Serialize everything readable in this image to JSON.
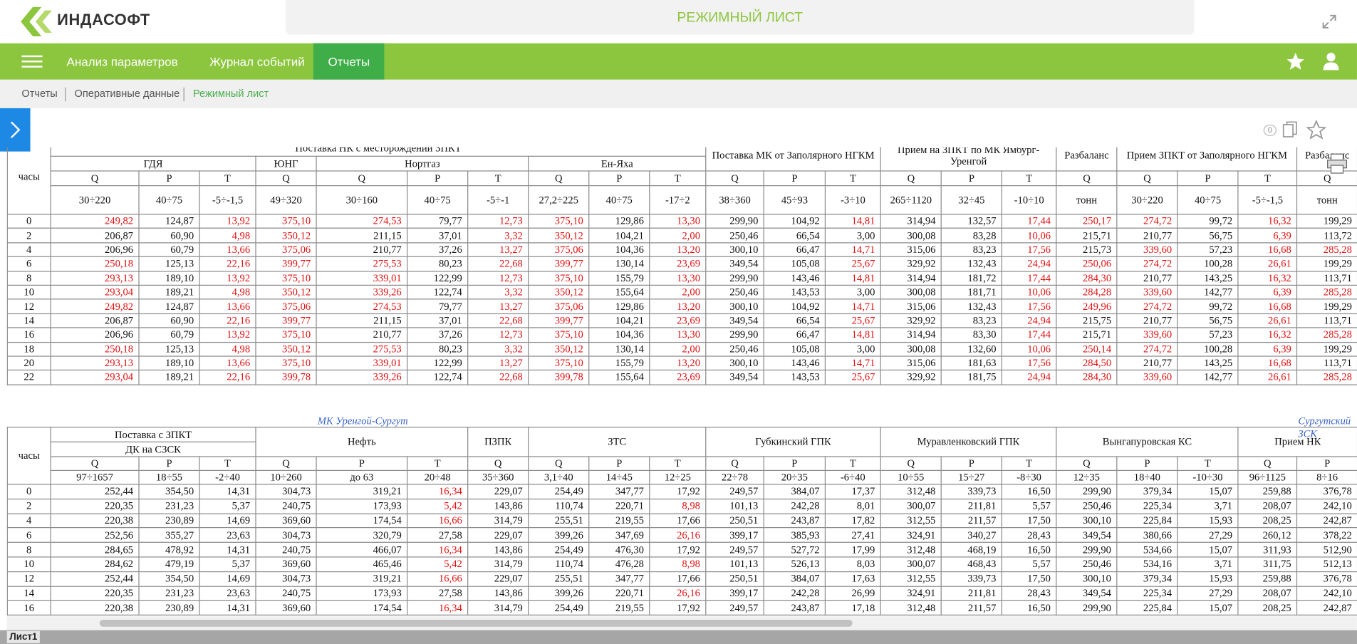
{
  "header": {
    "logo": "ИНДАСОФТ",
    "title": "РЕЖИМНЫЙ ЛИСТ"
  },
  "nav": {
    "items": [
      "Анализ параметров",
      "Журнал событий",
      "Отчеты"
    ],
    "active": 2
  },
  "breadcrumbs": [
    "Отчеты",
    "Оперативные данные",
    "Режимный лист"
  ],
  "toolbar": {
    "badge": "0"
  },
  "sheet_tab": "Лист1",
  "tables": [
    {
      "hour_label": "часы",
      "captions": [],
      "groups": [
        "Поставка НК с месторождений ЗПКТ",
        "Поставка МК от Заполярного НГКМ",
        "Прием на ЗПКТ по МК Ямбург-Уренгой",
        "Разбаланс",
        "Прием ЗПКТ от Заполярного НГКМ",
        "Разбаланс"
      ],
      "subgroups": [
        "ГДЯ",
        "ЮНГ",
        "Нортгаз",
        "Ен-Яха"
      ],
      "params": [
        "Q",
        "P",
        "T",
        "Q",
        "Q",
        "P",
        "T",
        "Q",
        "P",
        "T",
        "Q",
        "P",
        "T",
        "Q",
        "P",
        "T",
        "Q",
        "Q",
        "P",
        "T",
        "Q"
      ],
      "ranges": [
        "30÷220",
        "40÷75",
        "-5÷-1,5",
        "49÷320",
        "30÷160",
        "40÷75",
        "-5÷-1",
        "27,2÷225",
        "40÷75",
        "-17÷2",
        "38÷360",
        "45÷93",
        "-3÷10",
        "265÷1120",
        "32÷45",
        "-10÷10",
        "тонн",
        "30÷220",
        "40÷75",
        "-5÷-1,5",
        "тонн"
      ],
      "rows": [
        {
          "hour": 0,
          "values": [
            "249,82",
            "124,87",
            "13,92",
            "375,10",
            "274,53",
            "79,77",
            "12,73",
            "375,10",
            "129,86",
            "13,30",
            "299,90",
            "104,92",
            "14,81",
            "314,94",
            "132,57",
            "17,44",
            "250,17",
            "274,72",
            "99,72",
            "16,32",
            "199,29"
          ],
          "alarms": [
            0,
            2,
            3,
            4,
            6,
            7,
            9,
            12,
            15,
            16,
            17,
            19
          ]
        },
        {
          "hour": 2,
          "values": [
            "206,87",
            "60,90",
            "4,98",
            "350,12",
            "211,15",
            "37,01",
            "3,32",
            "350,12",
            "104,21",
            "2,00",
            "250,46",
            "66,54",
            "3,00",
            "300,08",
            "83,28",
            "10,06",
            "215,71",
            "210,77",
            "56,75",
            "6,39",
            "113,72"
          ],
          "alarms": [
            2,
            3,
            6,
            7,
            9,
            15,
            19
          ]
        },
        {
          "hour": 4,
          "values": [
            "206,96",
            "60,79",
            "13,66",
            "375,06",
            "210,77",
            "37,26",
            "13,27",
            "375,06",
            "104,36",
            "13,20",
            "300,10",
            "66,47",
            "14,71",
            "315,06",
            "83,23",
            "17,56",
            "215,73",
            "339,60",
            "57,23",
            "16,68",
            "285,28"
          ],
          "alarms": [
            2,
            3,
            6,
            7,
            9,
            12,
            15,
            17,
            19,
            20
          ]
        },
        {
          "hour": 6,
          "values": [
            "250,18",
            "125,13",
            "22,16",
            "399,77",
            "275,53",
            "80,23",
            "22,68",
            "399,77",
            "130,14",
            "23,69",
            "349,54",
            "105,08",
            "25,67",
            "329,92",
            "132,43",
            "24,94",
            "250,06",
            "274,72",
            "100,28",
            "26,61",
            "199,29"
          ],
          "alarms": [
            0,
            2,
            3,
            4,
            6,
            7,
            9,
            12,
            15,
            16,
            17,
            19
          ]
        },
        {
          "hour": 8,
          "values": [
            "293,13",
            "189,10",
            "13,92",
            "375,10",
            "339,01",
            "122,99",
            "12,73",
            "375,10",
            "155,79",
            "13,30",
            "299,90",
            "143,46",
            "14,81",
            "314,94",
            "181,72",
            "17,44",
            "284,30",
            "210,77",
            "143,25",
            "16,32",
            "113,71"
          ],
          "alarms": [
            0,
            2,
            3,
            4,
            6,
            7,
            9,
            12,
            15,
            16,
            19
          ]
        },
        {
          "hour": 10,
          "values": [
            "293,04",
            "189,21",
            "4,98",
            "350,12",
            "339,26",
            "122,74",
            "3,32",
            "350,12",
            "155,64",
            "2,00",
            "250,46",
            "143,53",
            "3,00",
            "300,08",
            "181,71",
            "10,06",
            "284,28",
            "339,60",
            "142,77",
            "6,39",
            "285,28"
          ],
          "alarms": [
            0,
            2,
            3,
            4,
            6,
            7,
            9,
            15,
            16,
            17,
            19,
            20
          ]
        },
        {
          "hour": 12,
          "values": [
            "249,82",
            "124,87",
            "13,66",
            "375,06",
            "274,53",
            "79,77",
            "13,27",
            "375,06",
            "129,86",
            "13,20",
            "300,10",
            "104,92",
            "14,71",
            "315,06",
            "132,43",
            "17,56",
            "249,96",
            "274,72",
            "99,72",
            "16,68",
            "199,29"
          ],
          "alarms": [
            0,
            2,
            3,
            4,
            6,
            7,
            9,
            12,
            15,
            16,
            17,
            19
          ]
        },
        {
          "hour": 14,
          "values": [
            "206,87",
            "60,90",
            "22,16",
            "399,77",
            "211,15",
            "37,01",
            "22,68",
            "399,77",
            "104,21",
            "23,69",
            "349,54",
            "66,54",
            "25,67",
            "329,92",
            "83,23",
            "24,94",
            "215,75",
            "210,77",
            "56,75",
            "26,61",
            "113,71"
          ],
          "alarms": [
            2,
            3,
            6,
            7,
            9,
            12,
            15,
            19
          ]
        },
        {
          "hour": 16,
          "values": [
            "206,96",
            "60,79",
            "13,92",
            "375,10",
            "210,77",
            "37,26",
            "12,73",
            "375,10",
            "104,36",
            "13,30",
            "299,90",
            "66,47",
            "14,81",
            "314,94",
            "83,30",
            "17,44",
            "215,71",
            "339,60",
            "57,23",
            "16,32",
            "285,28"
          ],
          "alarms": [
            2,
            3,
            6,
            7,
            9,
            12,
            15,
            17,
            19,
            20
          ]
        },
        {
          "hour": 18,
          "values": [
            "250,18",
            "125,13",
            "4,98",
            "350,12",
            "275,53",
            "80,23",
            "3,32",
            "350,12",
            "130,14",
            "2,00",
            "250,46",
            "105,08",
            "3,00",
            "300,08",
            "132,60",
            "10,06",
            "250,14",
            "274,72",
            "100,28",
            "6,39",
            "199,29"
          ],
          "alarms": [
            0,
            2,
            3,
            4,
            6,
            7,
            9,
            15,
            16,
            17,
            19
          ]
        },
        {
          "hour": 20,
          "values": [
            "293,13",
            "189,10",
            "13,66",
            "375,10",
            "339,01",
            "122,99",
            "13,27",
            "375,10",
            "155,79",
            "13,20",
            "300,10",
            "143,46",
            "14,71",
            "315,06",
            "181,63",
            "17,56",
            "284,50",
            "210,77",
            "143,25",
            "16,68",
            "113,71"
          ],
          "alarms": [
            0,
            2,
            3,
            4,
            6,
            7,
            9,
            12,
            15,
            16,
            19
          ]
        },
        {
          "hour": 22,
          "values": [
            "293,04",
            "189,21",
            "22,16",
            "399,78",
            "339,26",
            "122,74",
            "22,68",
            "399,78",
            "155,64",
            "23,69",
            "349,54",
            "143,53",
            "25,67",
            "329,92",
            "181,75",
            "24,94",
            "284,30",
            "339,60",
            "142,77",
            "26,61",
            "285,28"
          ],
          "alarms": [
            0,
            2,
            3,
            4,
            6,
            7,
            9,
            12,
            15,
            16,
            17,
            19,
            20
          ]
        }
      ]
    },
    {
      "hour_label": "часы",
      "captions": [
        "МК Уренгой-Сургут",
        "Сургутский ЗСК"
      ],
      "groups": [
        "Поставка с ЗПКТ",
        "Нефть",
        "ПЗПК",
        "ЗТС",
        "Губкинский ГПК",
        "Муравленковский ГПК",
        "Вынгапуровская КС",
        "Прием НК"
      ],
      "subgroups": [
        "ДК на СЗСК"
      ],
      "params": [
        "Q",
        "P",
        "T",
        "Q",
        "P",
        "T",
        "Q",
        "Q",
        "P",
        "T",
        "Q",
        "P",
        "T",
        "Q",
        "P",
        "T",
        "Q",
        "P",
        "T",
        "Q",
        "P"
      ],
      "ranges": [
        "97÷1657",
        "18÷55",
        "-2÷40",
        "10÷260",
        "до 63",
        "20÷48",
        "35÷360",
        "3,1÷40",
        "14÷45",
        "12÷25",
        "22÷78",
        "20÷35",
        "-6÷40",
        "10÷55",
        "15÷27",
        "-8÷30",
        "12÷35",
        "18÷40",
        "-10÷30",
        "96÷1125",
        "8÷16"
      ],
      "rows": [
        {
          "hour": 0,
          "values": [
            "252,44",
            "354,50",
            "14,31",
            "304,73",
            "319,21",
            "16,34",
            "229,07",
            "254,49",
            "347,77",
            "17,92",
            "249,57",
            "384,07",
            "17,37",
            "312,48",
            "339,73",
            "16,50",
            "299,90",
            "379,34",
            "15,07",
            "259,88",
            "376,78"
          ],
          "alarms": [
            5
          ]
        },
        {
          "hour": 2,
          "values": [
            "220,35",
            "231,23",
            "5,37",
            "240,75",
            "173,93",
            "5,42",
            "143,86",
            "110,74",
            "220,71",
            "8,98",
            "101,13",
            "242,28",
            "8,01",
            "300,07",
            "211,81",
            "5,57",
            "250,46",
            "225,34",
            "3,71",
            "208,07",
            "242,10"
          ],
          "alarms": [
            5,
            9
          ]
        },
        {
          "hour": 4,
          "values": [
            "220,38",
            "230,89",
            "14,69",
            "369,60",
            "174,54",
            "16,66",
            "314,79",
            "255,51",
            "219,55",
            "17,66",
            "250,51",
            "243,87",
            "17,82",
            "312,55",
            "211,57",
            "17,50",
            "300,10",
            "225,84",
            "15,93",
            "208,25",
            "242,87"
          ],
          "alarms": [
            5
          ]
        },
        {
          "hour": 6,
          "values": [
            "252,56",
            "355,27",
            "23,63",
            "304,73",
            "320,79",
            "27,58",
            "229,07",
            "399,26",
            "347,69",
            "26,16",
            "399,17",
            "385,93",
            "27,41",
            "324,91",
            "340,27",
            "28,43",
            "349,54",
            "380,66",
            "27,29",
            "260,12",
            "378,22"
          ],
          "alarms": [
            9
          ]
        },
        {
          "hour": 8,
          "values": [
            "284,65",
            "478,92",
            "14,31",
            "240,75",
            "466,07",
            "16,34",
            "143,86",
            "254,49",
            "476,30",
            "17,92",
            "249,57",
            "527,72",
            "17,99",
            "312,48",
            "468,19",
            "16,50",
            "299,90",
            "534,66",
            "15,07",
            "311,93",
            "512,90"
          ],
          "alarms": [
            5
          ]
        },
        {
          "hour": 10,
          "values": [
            "284,62",
            "479,19",
            "5,37",
            "369,60",
            "465,46",
            "5,42",
            "314,79",
            "110,74",
            "476,28",
            "8,98",
            "101,13",
            "526,13",
            "8,03",
            "300,07",
            "468,43",
            "5,57",
            "250,46",
            "534,16",
            "3,71",
            "311,75",
            "512,13"
          ],
          "alarms": [
            5,
            9
          ]
        },
        {
          "hour": 12,
          "values": [
            "252,44",
            "354,50",
            "14,69",
            "304,73",
            "319,21",
            "16,66",
            "229,07",
            "255,51",
            "347,77",
            "17,66",
            "250,51",
            "384,07",
            "17,63",
            "312,55",
            "339,73",
            "17,50",
            "300,10",
            "379,34",
            "15,93",
            "259,88",
            "376,78"
          ],
          "alarms": [
            5
          ]
        },
        {
          "hour": 14,
          "values": [
            "220,35",
            "231,23",
            "23,63",
            "240,75",
            "173,93",
            "27,58",
            "143,86",
            "399,26",
            "220,71",
            "26,16",
            "399,17",
            "242,28",
            "26,99",
            "324,91",
            "211,81",
            "28,43",
            "349,54",
            "225,34",
            "27,29",
            "208,07",
            "242,10"
          ],
          "alarms": [
            9
          ]
        },
        {
          "hour": 16,
          "values": [
            "220,38",
            "230,89",
            "14,31",
            "369,60",
            "174,54",
            "16,34",
            "314,79",
            "254,49",
            "219,55",
            "17,92",
            "249,57",
            "243,87",
            "17,18",
            "312,48",
            "211,57",
            "16,50",
            "299,90",
            "225,84",
            "15,07",
            "208,25",
            "242,87"
          ],
          "alarms": [
            5
          ]
        }
      ]
    }
  ]
}
